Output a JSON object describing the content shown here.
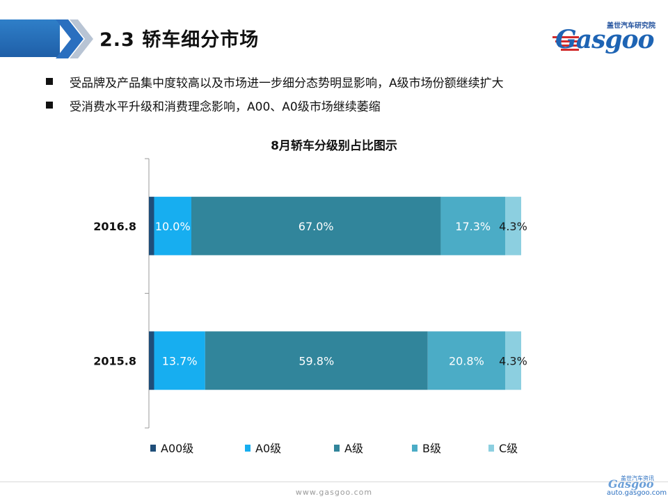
{
  "header": {
    "title": "2.3 轿车细分市场",
    "logo_subtitle": "盖世汽车研究院",
    "logo_text": "Gasgoo"
  },
  "bullets": [
    "受品牌及产品集中度较高以及市场进一步细分态势明显影响，A级市场份额继续扩大",
    "受消费水平升级和消费理念影响，A00、A0级市场继续萎缩"
  ],
  "footer": {
    "url": "www.gasgoo.com",
    "logo_subtitle": "盖世汽车资讯",
    "logo_text": "Gasgoo",
    "logo_url": "auto.gasgoo.com"
  },
  "colors": {
    "A00": "#1f4e79",
    "A0": "#17aef0",
    "A": "#31859b",
    "B": "#4bacc6",
    "C": "#8ccfe0",
    "header_band": "#1f5fa8"
  },
  "chart_data": {
    "type": "bar",
    "orientation": "horizontal",
    "stacked": true,
    "percent": true,
    "title": "8月轿车分级别占比图示",
    "categories": [
      "2016.8",
      "2015.8"
    ],
    "series": [
      {
        "name": "A00级",
        "values": [
          1.4,
          1.4
        ],
        "labels": [
          "",
          ""
        ]
      },
      {
        "name": "A0级",
        "values": [
          10.0,
          13.7
        ],
        "labels": [
          "10.0%",
          "13.7%"
        ]
      },
      {
        "name": "A级",
        "values": [
          67.0,
          59.8
        ],
        "labels": [
          "67.0%",
          "59.8%"
        ]
      },
      {
        "name": "B级",
        "values": [
          17.3,
          20.8
        ],
        "labels": [
          "17.3%",
          "20.8%"
        ]
      },
      {
        "name": "C级",
        "values": [
          4.3,
          4.3
        ],
        "labels": [
          "4.3%",
          "4.3%"
        ]
      }
    ],
    "xlim": [
      0,
      100
    ],
    "grid": false,
    "legend": "bottom"
  }
}
